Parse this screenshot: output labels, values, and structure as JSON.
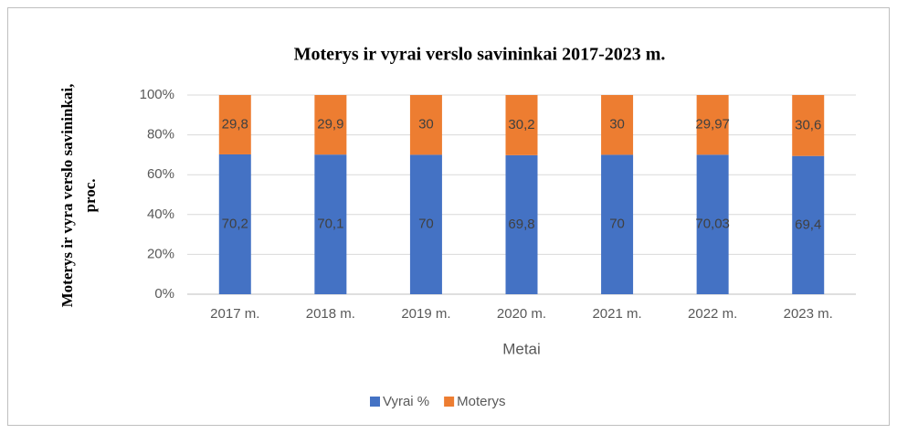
{
  "chart_data": {
    "type": "bar",
    "stacked": true,
    "title": "Moterys ir vyrai verslo savininkai 2017-2023 m.",
    "y_label": [
      "Moterys ir vyra verslo savininkai,",
      "proc."
    ],
    "x_label": "Metai",
    "categories": [
      "2017 m.",
      "2018 m.",
      "2019 m.",
      "2020 m.",
      "2021 m.",
      "2022 m.",
      "2023 m."
    ],
    "series": [
      {
        "name": "Vyrai %",
        "color": "#4472c4",
        "values": [
          70.2,
          70.1,
          70,
          69.8,
          70,
          70.03,
          69.4
        ],
        "value_labels": [
          "70,2",
          "70,1",
          "70",
          "69,8",
          "70",
          "70,03",
          "69,4"
        ]
      },
      {
        "name": "Moterys",
        "color": "#ed7d31",
        "values": [
          29.8,
          29.9,
          30,
          30.2,
          30,
          29.97,
          30.6
        ],
        "value_labels": [
          "29,8",
          "29,9",
          "30",
          "30,2",
          "30",
          "29,97",
          "30,6"
        ]
      }
    ],
    "ylim": [
      0,
      100
    ],
    "yticks": [
      {
        "value": 0,
        "label": "0%"
      },
      {
        "value": 20,
        "label": "20%"
      },
      {
        "value": 40,
        "label": "40%"
      },
      {
        "value": 60,
        "label": "60%"
      },
      {
        "value": 80,
        "label": "80%"
      },
      {
        "value": 100,
        "label": "100%"
      }
    ],
    "grid": true,
    "legend": "bottom"
  }
}
